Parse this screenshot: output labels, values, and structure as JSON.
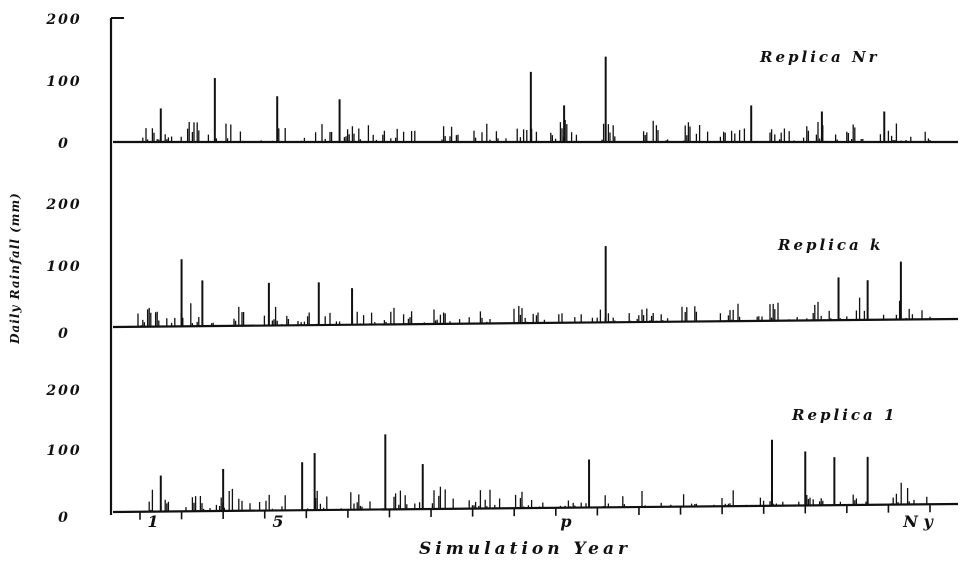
{
  "chart_data": {
    "type": "bar",
    "figure_xlabel": "Simulation Year",
    "figure_ylabel": "Daily Rainfall (mm)",
    "x_tick_labels": [
      "1",
      "5",
      "p",
      "N y"
    ],
    "y_tick_labels": [
      "0",
      "100",
      "200"
    ],
    "ylim": [
      0,
      200
    ],
    "panels": [
      {
        "title": "Replica Nr",
        "peaks": [
          {
            "year": 0.5,
            "value": 55
          },
          {
            "year": 1.8,
            "value": 105
          },
          {
            "year": 3.3,
            "value": 75
          },
          {
            "year": 4.8,
            "value": 70
          },
          {
            "year": 9.4,
            "value": 115
          },
          {
            "year": 10.2,
            "value": 60
          },
          {
            "year": 11.2,
            "value": 140
          },
          {
            "year": 14.7,
            "value": 60
          },
          {
            "year": 16.4,
            "value": 50
          },
          {
            "year": 17.9,
            "value": 50
          }
        ]
      },
      {
        "title": "Replica k",
        "peaks": [
          {
            "year": 1.0,
            "value": 110
          },
          {
            "year": 1.5,
            "value": 75
          },
          {
            "year": 3.1,
            "value": 70
          },
          {
            "year": 4.3,
            "value": 70
          },
          {
            "year": 5.1,
            "value": 60
          },
          {
            "year": 11.2,
            "value": 125
          },
          {
            "year": 16.8,
            "value": 70
          },
          {
            "year": 17.5,
            "value": 65
          },
          {
            "year": 18.3,
            "value": 95
          }
        ]
      },
      {
        "title": "Replica 1",
        "peaks": [
          {
            "year": 0.5,
            "value": 60
          },
          {
            "year": 2.0,
            "value": 70
          },
          {
            "year": 3.9,
            "value": 80
          },
          {
            "year": 4.2,
            "value": 95
          },
          {
            "year": 5.9,
            "value": 125
          },
          {
            "year": 6.8,
            "value": 75
          },
          {
            "year": 10.8,
            "value": 80
          },
          {
            "year": 15.2,
            "value": 110
          },
          {
            "year": 16.0,
            "value": 90
          },
          {
            "year": 16.7,
            "value": 80
          },
          {
            "year": 17.5,
            "value": 80
          }
        ]
      }
    ],
    "grid": false,
    "legend": "none"
  }
}
